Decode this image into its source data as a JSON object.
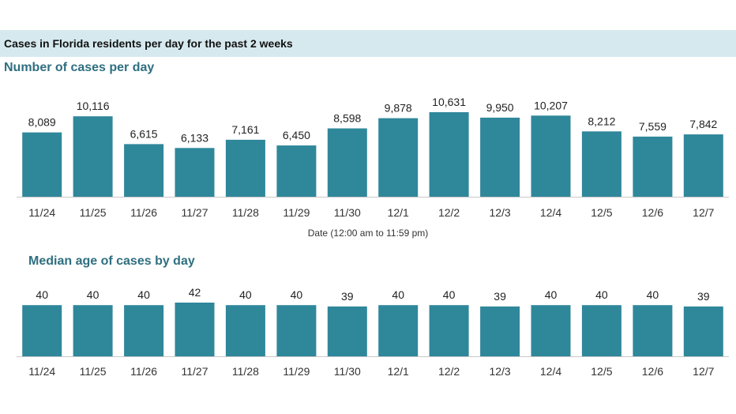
{
  "header": {
    "title": "Cases in Florida residents per day for the past 2 weeks"
  },
  "colors": {
    "bar": "#2f879a",
    "header_band": "#d6e9ef",
    "title_accent": "#2f6f80",
    "axis": "#c8c8c8"
  },
  "chart_data": [
    {
      "type": "bar",
      "title": "Number of cases per day",
      "xlabel": "Date (12:00 am to 11:59 pm)",
      "ylabel": "",
      "categories": [
        "11/24",
        "11/25",
        "11/26",
        "11/27",
        "11/28",
        "11/29",
        "11/30",
        "12/1",
        "12/2",
        "12/3",
        "12/4",
        "12/5",
        "12/6",
        "12/7"
      ],
      "values": [
        8089,
        10116,
        6615,
        6133,
        7161,
        6450,
        8598,
        9878,
        10631,
        9950,
        10207,
        8212,
        7559,
        7842
      ],
      "value_labels": [
        "8,089",
        "10,116",
        "6,615",
        "6,133",
        "7,161",
        "6,450",
        "8,598",
        "9,878",
        "10,631",
        "9,950",
        "10,207",
        "8,212",
        "7,559",
        "7,842"
      ],
      "ylim": [
        0,
        10631
      ],
      "grid": false,
      "legend": "none"
    },
    {
      "type": "bar",
      "title": "Median age of cases by day",
      "xlabel": "",
      "ylabel": "",
      "categories": [
        "11/24",
        "11/25",
        "11/26",
        "11/27",
        "11/28",
        "11/29",
        "11/30",
        "12/1",
        "12/2",
        "12/3",
        "12/4",
        "12/5",
        "12/6",
        "12/7"
      ],
      "values": [
        40,
        40,
        40,
        42,
        40,
        40,
        39,
        40,
        40,
        39,
        40,
        40,
        40,
        39
      ],
      "value_labels": [
        "40",
        "40",
        "40",
        "42",
        "40",
        "40",
        "39",
        "40",
        "40",
        "39",
        "40",
        "40",
        "40",
        "39"
      ],
      "ylim": [
        0,
        42
      ],
      "grid": false,
      "legend": "none"
    }
  ]
}
